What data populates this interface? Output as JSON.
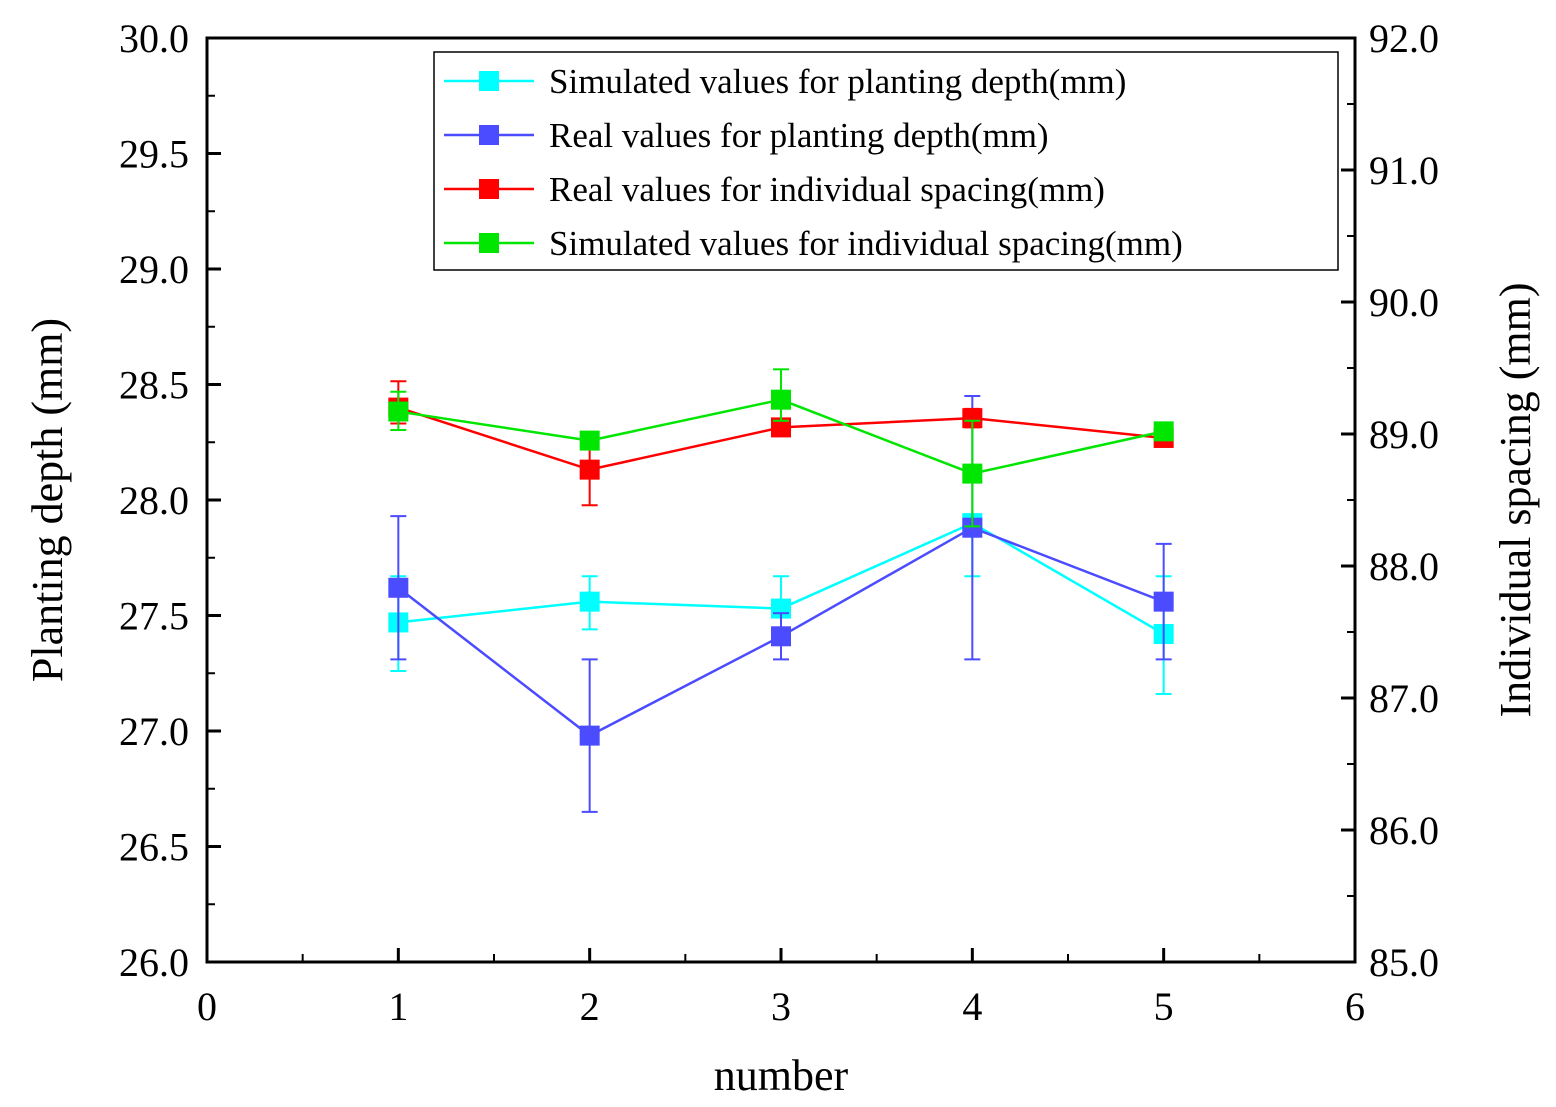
{
  "chart_data": {
    "type": "line",
    "title": "",
    "xlabel": "number",
    "ylabel": "Planting depth (mm)",
    "y2label": "Individual spacing (mm)",
    "xlim": [
      0,
      6
    ],
    "ylim": [
      26.0,
      30.0
    ],
    "y2lim": [
      85.0,
      92.0
    ],
    "x_ticks": [
      0,
      1,
      2,
      3,
      4,
      5,
      6
    ],
    "x_tick_labels": [
      "0",
      "1",
      "2",
      "3",
      "4",
      "5",
      "6"
    ],
    "y_ticks": [
      26.0,
      26.5,
      27.0,
      27.5,
      28.0,
      28.5,
      29.0,
      29.5,
      30.0
    ],
    "y_tick_labels": [
      "26.0",
      "26.5",
      "27.0",
      "27.5",
      "28.0",
      "28.5",
      "29.0",
      "29.5",
      "30.0"
    ],
    "y2_ticks": [
      85.0,
      86.0,
      87.0,
      88.0,
      89.0,
      90.0,
      91.0,
      92.0
    ],
    "y2_tick_labels": [
      "85.0",
      "86.0",
      "87.0",
      "88.0",
      "89.0",
      "90.0",
      "91.0",
      "92.0"
    ],
    "grid": false,
    "legend_position": "top-right",
    "x": [
      1,
      2,
      3,
      4,
      5
    ],
    "series": [
      {
        "name": "Simulated values for planting depth(mm)",
        "axis": "left",
        "color": "#00FFFF",
        "values": [
          27.47,
          27.56,
          27.53,
          27.9,
          27.42
        ],
        "err_low": [
          27.26,
          27.44,
          27.41,
          27.67,
          27.16
        ],
        "err_high": [
          27.67,
          27.67,
          27.67,
          27.91,
          27.67
        ]
      },
      {
        "name": "Real values for planting depth(mm)",
        "axis": "left",
        "color": "#4B4BFF",
        "values": [
          27.62,
          26.98,
          27.41,
          27.88,
          27.56
        ],
        "err_low": [
          27.31,
          26.65,
          27.31,
          27.31,
          27.31
        ],
        "err_high": [
          27.93,
          27.31,
          27.51,
          28.45,
          27.81
        ]
      },
      {
        "name": "Real values for individual spacing(mm)",
        "axis": "right",
        "color": "#FF0000",
        "values": [
          89.2,
          88.73,
          89.05,
          89.12,
          88.97
        ],
        "err_low": [
          89.08,
          88.46,
          89.0,
          89.05,
          88.95
        ],
        "err_high": [
          89.4,
          88.98,
          89.1,
          89.19,
          89.0
        ]
      },
      {
        "name": "Simulated values for individual spacing(mm)",
        "axis": "right",
        "color": "#00E600",
        "values": [
          89.17,
          88.95,
          89.26,
          88.7,
          89.02
        ],
        "err_low": [
          89.03,
          88.9,
          89.1,
          88.3,
          88.98
        ],
        "err_high": [
          89.32,
          89.0,
          89.49,
          89.1,
          89.05
        ]
      }
    ]
  }
}
